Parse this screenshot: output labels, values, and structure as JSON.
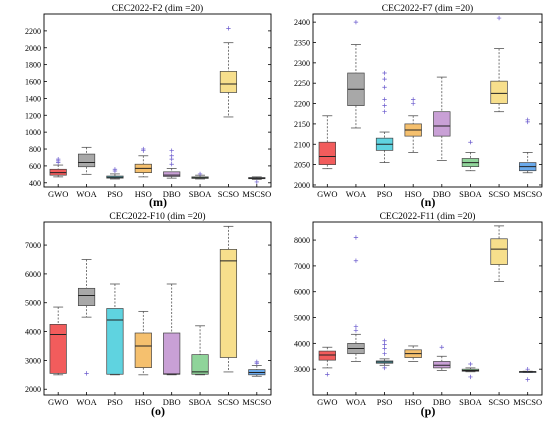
{
  "chart_data": [
    {
      "type": "box",
      "title": "CEC2022-F2 (dim =20)",
      "tag": "(m)",
      "categories": [
        "GWO",
        "WOA",
        "PSO",
        "HSO",
        "DBO",
        "SBOA",
        "SCSO",
        "MSCSO"
      ],
      "colors": [
        "#f25c5c",
        "#a8a8a8",
        "#5fd3e0",
        "#f5c06e",
        "#c9a0d6",
        "#8fd49a",
        "#f7df8c",
        "#6aa9ea"
      ],
      "ylim": [
        350,
        2400
      ],
      "yticks": [
        400,
        600,
        800,
        1000,
        1200,
        1400,
        1600,
        1800,
        2000,
        2200
      ],
      "boxes": [
        {
          "min": 470,
          "q1": 490,
          "median": 520,
          "q3": 560,
          "max": 610,
          "outliers": [
            640,
            660,
            680
          ]
        },
        {
          "min": 500,
          "q1": 590,
          "median": 640,
          "q3": 740,
          "max": 820,
          "outliers": []
        },
        {
          "min": 445,
          "q1": 455,
          "median": 465,
          "q3": 480,
          "max": 505,
          "outliers": [
            540,
            560
          ]
        },
        {
          "min": 470,
          "q1": 520,
          "median": 570,
          "q3": 620,
          "max": 720,
          "outliers": [
            780,
            800
          ]
        },
        {
          "min": 455,
          "q1": 475,
          "median": 490,
          "q3": 530,
          "max": 570,
          "outliers": [
            620,
            680,
            720,
            780
          ]
        },
        {
          "min": 445,
          "q1": 452,
          "median": 460,
          "q3": 470,
          "max": 490,
          "outliers": [
            505
          ]
        },
        {
          "min": 1180,
          "q1": 1470,
          "median": 1570,
          "q3": 1720,
          "max": 2060,
          "outliers": [
            2230
          ]
        },
        {
          "min": 440,
          "q1": 448,
          "median": 455,
          "q3": 462,
          "max": 470,
          "outliers": [
            410
          ]
        }
      ]
    },
    {
      "type": "box",
      "title": "CEC2022-F7 (dim =20)",
      "tag": "(n)",
      "categories": [
        "GWO",
        "WOA",
        "PSO",
        "HSO",
        "DBO",
        "SBOA",
        "SCSO",
        "MSCSO"
      ],
      "colors": [
        "#f25c5c",
        "#a8a8a8",
        "#5fd3e0",
        "#f5c06e",
        "#c9a0d6",
        "#8fd49a",
        "#f7df8c",
        "#6aa9ea"
      ],
      "ylim": [
        1995,
        2420
      ],
      "yticks": [
        2000,
        2050,
        2100,
        2150,
        2200,
        2250,
        2300,
        2350,
        2400
      ],
      "boxes": [
        {
          "min": 2040,
          "q1": 2050,
          "median": 2070,
          "q3": 2105,
          "max": 2170,
          "outliers": []
        },
        {
          "min": 2140,
          "q1": 2195,
          "median": 2235,
          "q3": 2275,
          "max": 2345,
          "outliers": [
            2400
          ]
        },
        {
          "min": 2055,
          "q1": 2085,
          "median": 2100,
          "q3": 2115,
          "max": 2130,
          "outliers": [
            2180,
            2195,
            2210,
            2240,
            2260,
            2275
          ]
        },
        {
          "min": 2080,
          "q1": 2120,
          "median": 2135,
          "q3": 2150,
          "max": 2170,
          "outliers": [
            2200,
            2210
          ]
        },
        {
          "min": 2060,
          "q1": 2120,
          "median": 2145,
          "q3": 2180,
          "max": 2265,
          "outliers": []
        },
        {
          "min": 2035,
          "q1": 2045,
          "median": 2055,
          "q3": 2065,
          "max": 2080,
          "outliers": [
            2105
          ]
        },
        {
          "min": 2180,
          "q1": 2200,
          "median": 2225,
          "q3": 2255,
          "max": 2335,
          "outliers": [
            2410
          ]
        },
        {
          "min": 2030,
          "q1": 2035,
          "median": 2045,
          "q3": 2055,
          "max": 2080,
          "outliers": [
            2155,
            2160
          ]
        }
      ]
    },
    {
      "type": "box",
      "title": "CEC2022-F10 (dim =20)",
      "tag": "(o)",
      "categories": [
        "GWO",
        "WOA",
        "PSO",
        "HSO",
        "DBO",
        "SBOA",
        "SCSO",
        "MSCSO"
      ],
      "colors": [
        "#f25c5c",
        "#a8a8a8",
        "#5fd3e0",
        "#f5c06e",
        "#c9a0d6",
        "#8fd49a",
        "#f7df8c",
        "#6aa9ea"
      ],
      "ylim": [
        1800,
        7800
      ],
      "yticks": [
        2000,
        3000,
        4000,
        5000,
        6000,
        7000
      ],
      "boxes": [
        {
          "min": 2500,
          "q1": 2550,
          "median": 3900,
          "q3": 4250,
          "max": 4850,
          "outliers": []
        },
        {
          "min": 4500,
          "q1": 4900,
          "median": 5250,
          "q3": 5500,
          "max": 6500,
          "outliers": [
            2550
          ]
        },
        {
          "min": 2500,
          "q1": 2520,
          "median": 4400,
          "q3": 4800,
          "max": 5650,
          "outliers": []
        },
        {
          "min": 2500,
          "q1": 2750,
          "median": 3500,
          "q3": 3950,
          "max": 4700,
          "outliers": []
        },
        {
          "min": 2500,
          "q1": 2520,
          "median": 2530,
          "q3": 3950,
          "max": 5650,
          "outliers": []
        },
        {
          "min": 2500,
          "q1": 2520,
          "median": 2600,
          "q3": 3200,
          "max": 4200,
          "outliers": []
        },
        {
          "min": 2600,
          "q1": 3100,
          "median": 6450,
          "q3": 6850,
          "max": 7650,
          "outliers": []
        },
        {
          "min": 2450,
          "q1": 2500,
          "median": 2580,
          "q3": 2680,
          "max": 2820,
          "outliers": [
            2900,
            2950
          ]
        }
      ]
    },
    {
      "type": "box",
      "title": "CEC2022-F11 (dim =20)",
      "tag": "(p)",
      "categories": [
        "GWO",
        "WOA",
        "PSO",
        "HSO",
        "DBO",
        "SBOA",
        "SCSO",
        "MSCSO"
      ],
      "colors": [
        "#f25c5c",
        "#a8a8a8",
        "#5fd3e0",
        "#f5c06e",
        "#c9a0d6",
        "#8fd49a",
        "#f7df8c",
        "#6aa9ea"
      ],
      "ylim": [
        2000,
        8700
      ],
      "yticks": [
        3000,
        4000,
        5000,
        6000,
        7000,
        8000
      ],
      "boxes": [
        {
          "min": 3050,
          "q1": 3350,
          "median": 3550,
          "q3": 3700,
          "max": 3850,
          "outliers": [
            2800
          ]
        },
        {
          "min": 3300,
          "q1": 3600,
          "median": 3800,
          "q3": 4000,
          "max": 4350,
          "outliers": [
            4500,
            4650,
            7200,
            8100
          ]
        },
        {
          "min": 3150,
          "q1": 3230,
          "median": 3280,
          "q3": 3320,
          "max": 3400,
          "outliers": [
            3600,
            3800,
            3950,
            4100,
            3050
          ]
        },
        {
          "min": 3300,
          "q1": 3450,
          "median": 3600,
          "q3": 3750,
          "max": 3900,
          "outliers": []
        },
        {
          "min": 2950,
          "q1": 3050,
          "median": 3150,
          "q3": 3300,
          "max": 3500,
          "outliers": [
            3850
          ]
        },
        {
          "min": 2900,
          "q1": 2920,
          "median": 2950,
          "q3": 3000,
          "max": 3050,
          "outliers": [
            3200,
            2700
          ]
        },
        {
          "min": 6400,
          "q1": 7050,
          "median": 7650,
          "q3": 8050,
          "max": 8550,
          "outliers": []
        },
        {
          "min": 2870,
          "q1": 2890,
          "median": 2900,
          "q3": 2910,
          "max": 2920,
          "outliers": [
            3000,
            2600
          ]
        }
      ]
    }
  ]
}
